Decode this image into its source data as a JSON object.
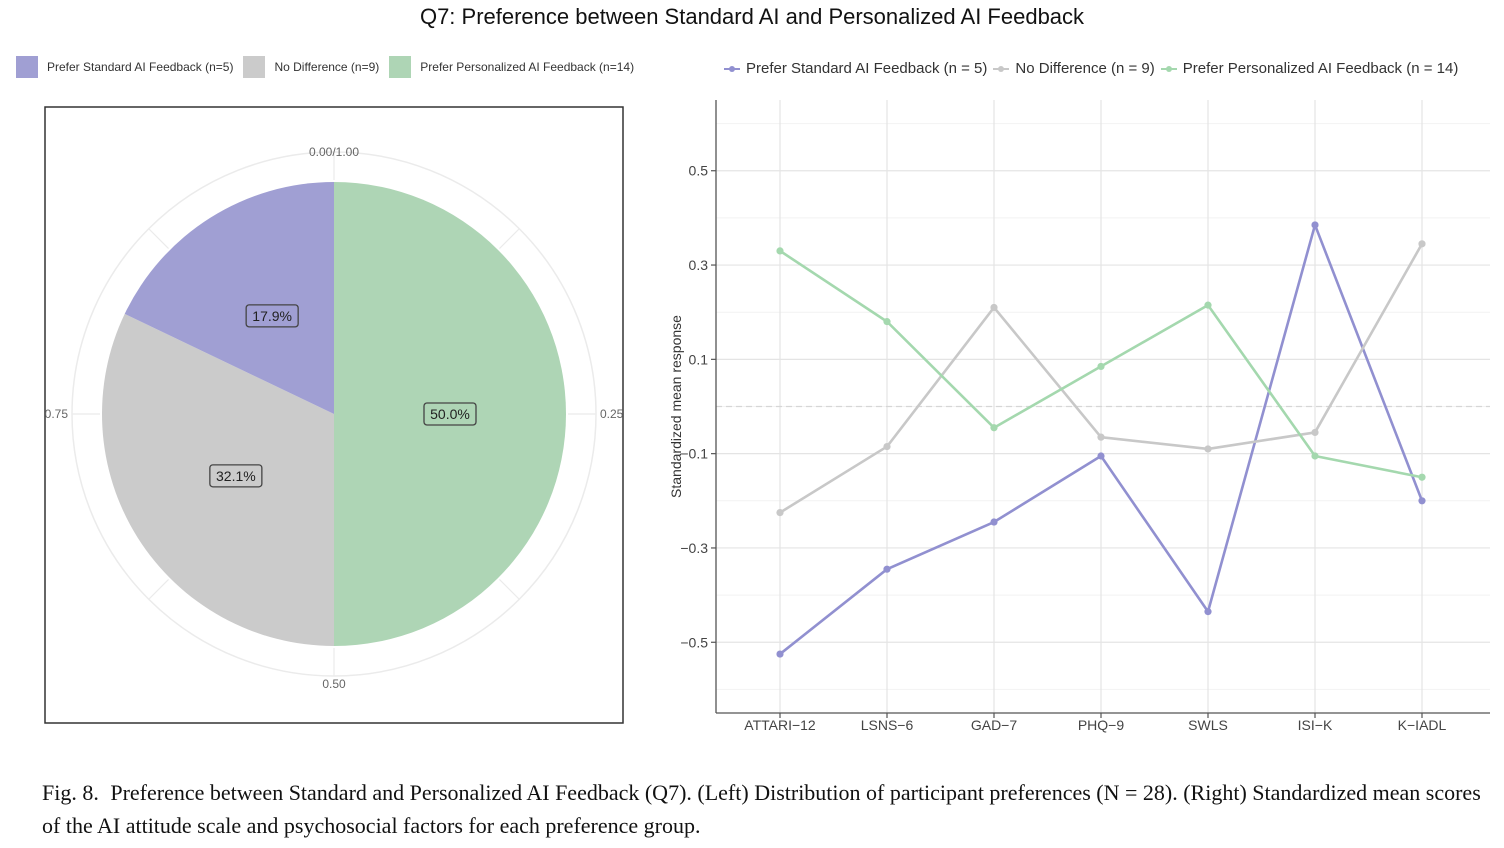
{
  "figure": {
    "title": "Q7: Preference between Standard AI and Personalized AI Feedback",
    "caption_label": "Fig. 8.",
    "caption_text": "Preference between Standard and Personalized AI Feedback (Q7). (Left) Distribution of participant preferences (N = 28). (Right) Standardized mean scores of the AI attitude scale and psychosocial factors for each preference group."
  },
  "colors": {
    "standard": "#a09fd3",
    "no_difference": "#cbcbcb",
    "personalized": "#aed5b5",
    "standard_line": "#9190d0",
    "no_difference_line": "#c8c8c8",
    "personalized_line": "#a4d8ae"
  },
  "chart_data": [
    {
      "type": "pie",
      "legend": [
        "Prefer Standard AI Feedback (n=5)",
        "No Difference (n=9)",
        "Prefer Personalized AI Feedback (n=14)"
      ],
      "slices": [
        {
          "name": "Prefer Personalized AI Feedback",
          "value": 50.0,
          "label": "50.0%"
        },
        {
          "name": "No Difference",
          "value": 32.1,
          "label": "32.1%"
        },
        {
          "name": "Prefer Standard AI Feedback",
          "value": 17.9,
          "label": "17.9%"
        }
      ],
      "polar_ticks": [
        "0.00/1.00",
        "0.25",
        "0.50",
        "0.75"
      ]
    },
    {
      "type": "line",
      "ylabel": "Standardized mean response",
      "ylim": [
        -0.65,
        0.65
      ],
      "yticks": [
        0.5,
        0.3,
        0.1,
        -0.1,
        -0.3,
        -0.5
      ],
      "ytick_labels": [
        "0.5",
        "0.3",
        "0.1",
        "−0.1",
        "−0.3",
        "−0.5"
      ],
      "reference_line": 0,
      "grid": true,
      "legend_position": "top",
      "legend": [
        "Prefer Standard AI Feedback (n = 5)",
        "No Difference (n = 9)",
        "Prefer Personalized AI Feedback (n = 14)"
      ],
      "categories": [
        "ATTARI−12",
        "LSNS−6",
        "GAD−7",
        "PHQ−9",
        "SWLS",
        "ISI−K",
        "K−IADL"
      ],
      "series": [
        {
          "name": "Prefer Standard AI Feedback (n = 5)",
          "values": [
            -0.525,
            -0.345,
            -0.245,
            -0.105,
            -0.435,
            0.385,
            -0.2
          ]
        },
        {
          "name": "No Difference (n = 9)",
          "values": [
            -0.225,
            -0.085,
            0.21,
            -0.065,
            -0.09,
            -0.055,
            0.345
          ]
        },
        {
          "name": "Prefer Personalized AI Feedback (n = 14)",
          "values": [
            0.33,
            0.18,
            -0.045,
            0.085,
            0.215,
            -0.105,
            -0.15
          ]
        }
      ]
    }
  ]
}
